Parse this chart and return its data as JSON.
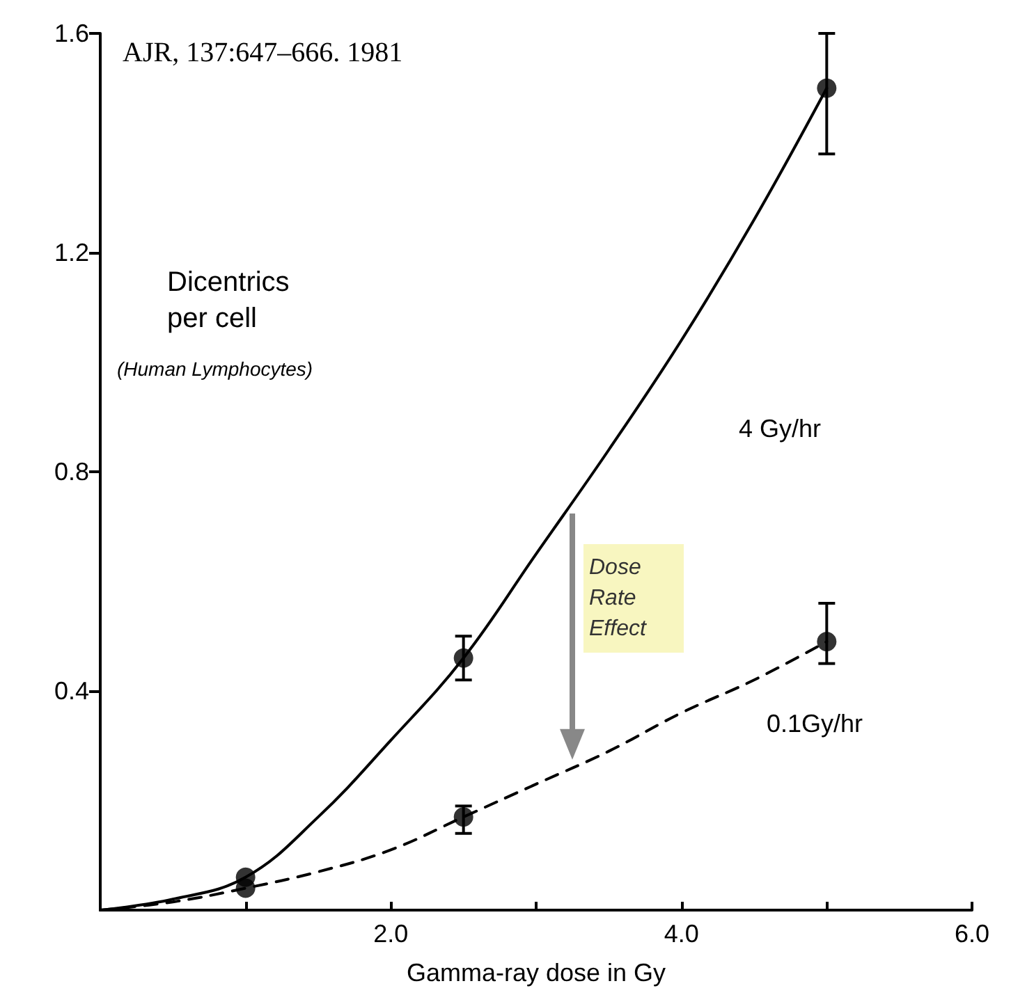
{
  "chart_data": {
    "type": "scatter",
    "xlabel": "Gamma-ray dose in Gy",
    "ylabel": "Dicentrics per cell",
    "annotations": [
      "AJR, 137:647–666. 1981",
      "(Human Lymphocytes)",
      "4 Gy/hr",
      "0.1Gy/hr",
      "Dose Rate Effect"
    ],
    "series": [
      {
        "color": "#000000",
        "marker": "circle",
        "x": [
          1,
          2.5,
          5
        ],
        "values": [
          0.06,
          0.46,
          1.5
        ],
        "errors": [
          null,
          [
            0.42,
            0.5
          ],
          [
            1.38,
            1.6
          ]
        ]
      },
      {
        "color": "#000000",
        "marker": "circle",
        "x": [
          1,
          2.5,
          5
        ],
        "values": [
          0.04,
          0.17,
          0.49
        ],
        "errors": [
          null,
          [
            0.14,
            0.19
          ],
          [
            0.45,
            0.56
          ]
        ]
      },
      {
        "type": "line",
        "color": "#000000",
        "marker": "none",
        "line_style": "solid",
        "x": [
          0,
          0.5,
          1,
          1.5,
          2,
          2.5,
          3,
          3.5,
          4,
          4.5,
          5
        ],
        "values": [
          0,
          0.02,
          0.06,
          0.17,
          0.31,
          0.46,
          0.65,
          0.84,
          1.04,
          1.26,
          1.5
        ]
      },
      {
        "type": "line",
        "color": "#000000",
        "marker": "none",
        "line_style": "dashed",
        "x": [
          0,
          0.5,
          1,
          1.5,
          2,
          2.5,
          3,
          3.5,
          4,
          4.5,
          5
        ],
        "values": [
          0,
          0.015,
          0.04,
          0.07,
          0.11,
          0.17,
          0.23,
          0.29,
          0.36,
          0.42,
          0.49
        ]
      }
    ],
    "xlim": [
      0,
      6
    ],
    "xticks": [
      {
        "value": 1,
        "label": null
      },
      {
        "value": 2,
        "label": "2.0"
      },
      {
        "value": 3,
        "label": null
      },
      {
        "value": 4,
        "label": "4.0"
      },
      {
        "value": 5,
        "label": null
      },
      {
        "value": 6,
        "label": "6.0"
      }
    ],
    "ylim": [
      0,
      1.6
    ],
    "yticks": [
      {
        "value": 0.4,
        "label": "0.4"
      },
      {
        "value": 0.8,
        "label": "0.8"
      },
      {
        "value": 1.2,
        "label": "1.2"
      },
      {
        "value": 1.6,
        "label": "1.6"
      }
    ],
    "grid": false
  }
}
